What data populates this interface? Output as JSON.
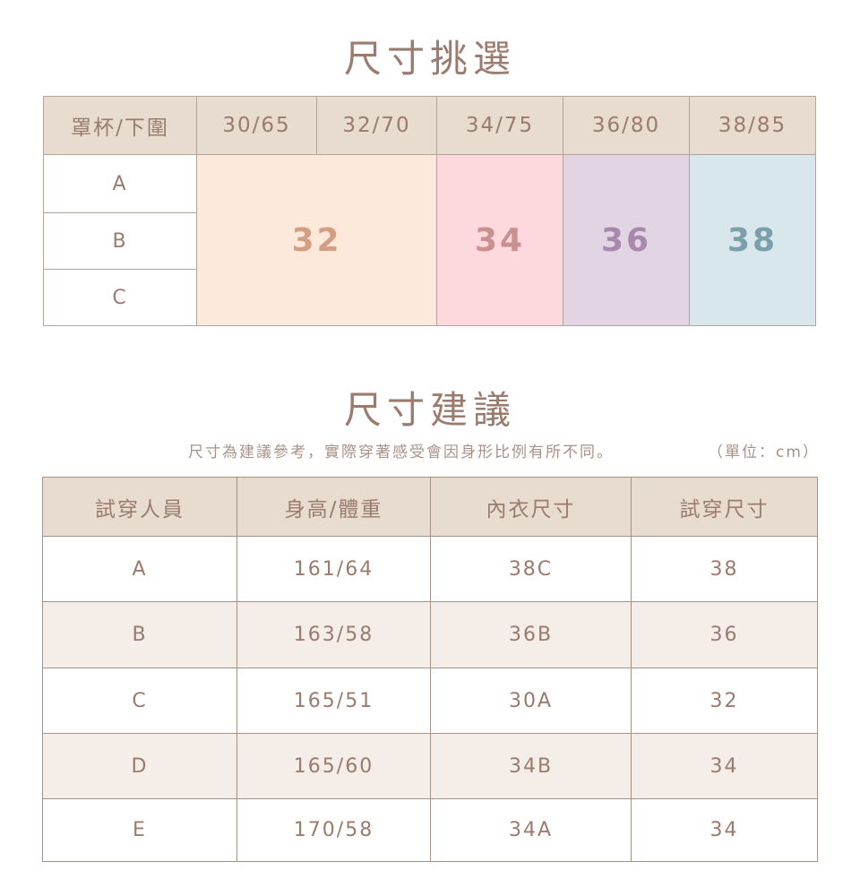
{
  "section1": {
    "title": "尺寸挑選",
    "corner_header": "罩杯/下圍",
    "band_headers": [
      "30/65",
      "32/70",
      "34/75",
      "36/80",
      "38/85"
    ],
    "cups": [
      "A",
      "B",
      "C"
    ],
    "sizes": [
      {
        "label": "32",
        "bg": "#fde8dc",
        "color": "#d49e84"
      },
      {
        "label": "34",
        "bg": "#fdd9dd",
        "color": "#c9908f"
      },
      {
        "label": "36",
        "bg": "#e2d4e2",
        "color": "#a888ac"
      },
      {
        "label": "38",
        "bg": "#d8e7ec",
        "color": "#7ba0ab"
      }
    ]
  },
  "section2": {
    "title": "尺寸建議",
    "note": "尺寸為建議參考，實際穿著感受會因身形比例有所不同。",
    "unit": "（單位：cm）",
    "headers": [
      "試穿人員",
      "身高/體重",
      "內衣尺寸",
      "試穿尺寸"
    ],
    "rows": [
      [
        "A",
        "161/64",
        "38C",
        "38"
      ],
      [
        "B",
        "163/58",
        "36B",
        "36"
      ],
      [
        "C",
        "165/51",
        "30A",
        "32"
      ],
      [
        "D",
        "165/60",
        "34B",
        "34"
      ],
      [
        "E",
        "170/58",
        "34A",
        "34"
      ]
    ]
  },
  "colors": {
    "header_bg": "#e8dbd0",
    "text": "#9a7b6e",
    "alt_row": "#f4ede8"
  }
}
